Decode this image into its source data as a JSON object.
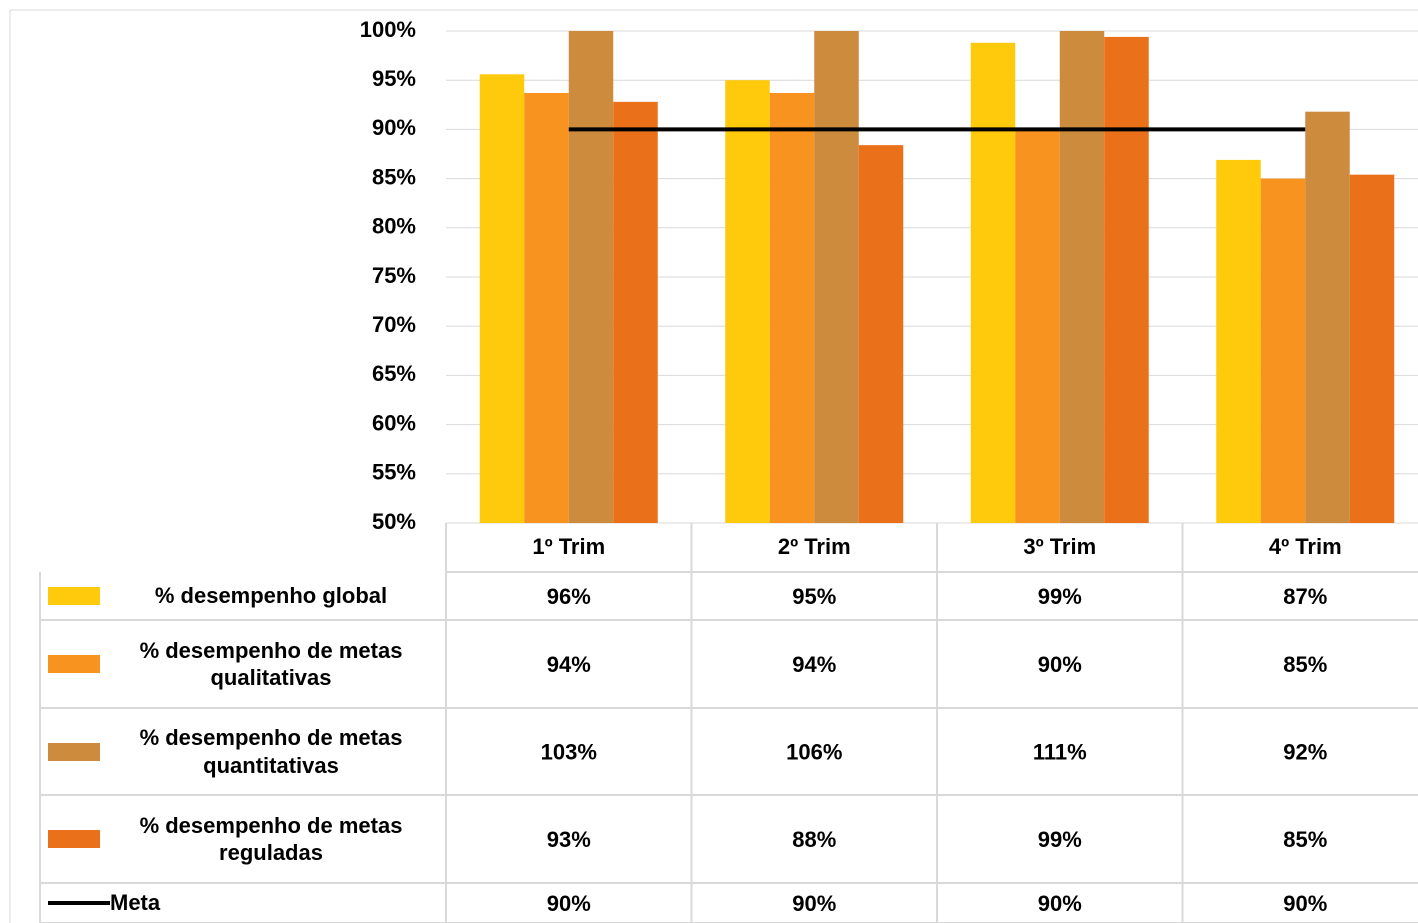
{
  "chart_data": {
    "type": "bar",
    "categories": [
      "1º Trim",
      "2º Trim",
      "3º Trim",
      "4º Trim"
    ],
    "ylim": [
      50,
      100
    ],
    "yticks": [
      {
        "value": 50,
        "label": "50%"
      },
      {
        "value": 55,
        "label": "55%"
      },
      {
        "value": 60,
        "label": "60%"
      },
      {
        "value": 65,
        "label": "65%"
      },
      {
        "value": 70,
        "label": "70%"
      },
      {
        "value": 75,
        "label": "75%"
      },
      {
        "value": 80,
        "label": "80%"
      },
      {
        "value": 85,
        "label": "85%"
      },
      {
        "value": 90,
        "label": "90%"
      },
      {
        "value": 95,
        "label": "95%"
      },
      {
        "value": 100,
        "label": "100%"
      }
    ],
    "grid": true,
    "series": [
      {
        "name": "% desempenho global",
        "color": "#ffc90c",
        "type": "bar",
        "values": [
          95.6,
          95.0,
          98.8,
          86.9
        ],
        "value_labels": [
          "96%",
          "95%",
          "99%",
          "87%"
        ]
      },
      {
        "name": "% desempenho de metas qualitativas",
        "color": "#f7931e",
        "type": "bar",
        "values": [
          93.7,
          93.7,
          90.0,
          85.0
        ],
        "value_labels": [
          "94%",
          "94%",
          "90%",
          "85%"
        ]
      },
      {
        "name": "% desempenho de metas quantitativas",
        "color": "#cd8b3e",
        "type": "bar",
        "values": [
          103,
          106,
          111,
          91.8
        ],
        "value_labels": [
          "103%",
          "106%",
          "111%",
          "92%"
        ]
      },
      {
        "name": "% desempenho de metas reguladas",
        "color": "#eb701a",
        "type": "bar",
        "values": [
          92.8,
          88.4,
          99.4,
          85.4
        ],
        "value_labels": [
          "93%",
          "88%",
          "99%",
          "85%"
        ]
      },
      {
        "name": "Meta",
        "color": "#000000",
        "type": "line",
        "values": [
          90,
          90,
          90,
          90
        ],
        "value_labels": [
          "90%",
          "90%",
          "90%",
          "90%"
        ]
      }
    ]
  }
}
